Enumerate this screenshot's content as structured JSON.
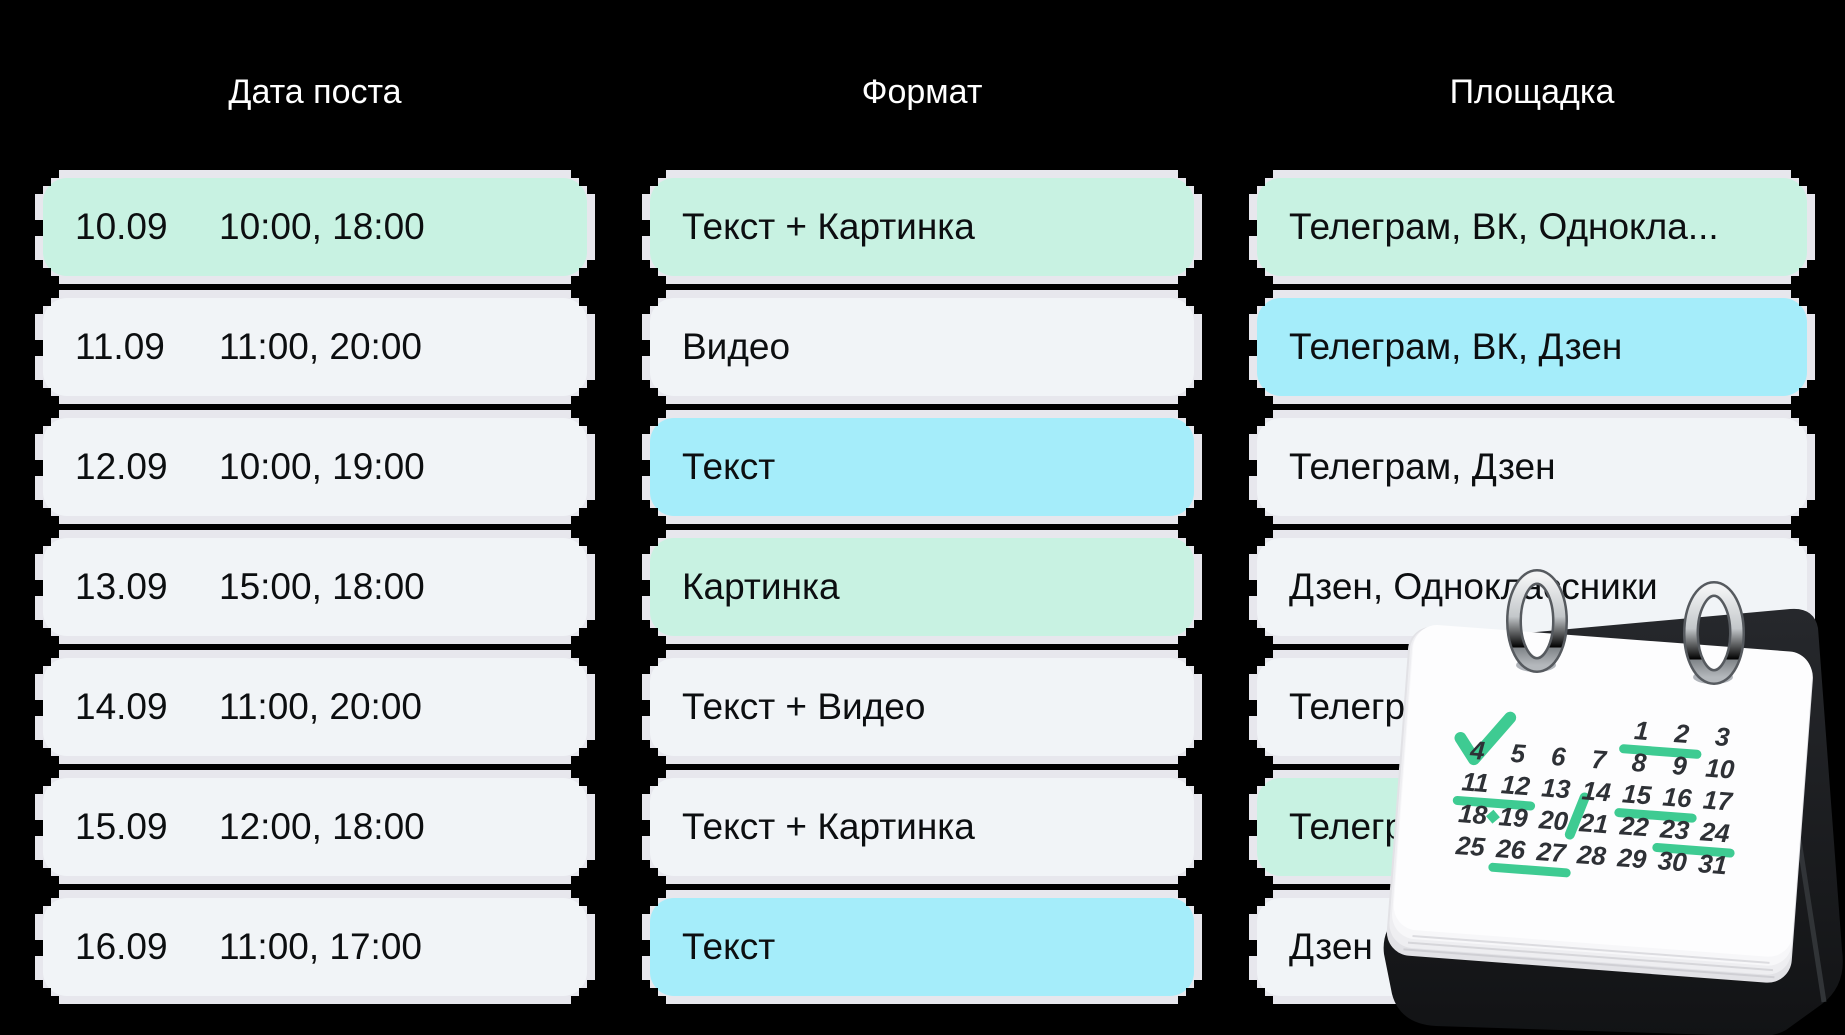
{
  "header": {
    "columns": [
      "Дата поста",
      "Формат",
      "Площадка"
    ]
  },
  "rows": [
    {
      "date": "10.09",
      "times": "10:00, 18:00",
      "format": "Текст + Картинка",
      "platform": "Телеграм, ВК, Однокла...",
      "date_color": "mint",
      "format_color": "mint",
      "platform_color": "mint"
    },
    {
      "date": "11.09",
      "times": "11:00, 20:00",
      "format": "Видео",
      "platform": "Телеграм, ВК, Дзен",
      "date_color": "gray",
      "format_color": "gray",
      "platform_color": "cyan"
    },
    {
      "date": "12.09",
      "times": "10:00, 19:00",
      "format": "Текст",
      "platform": "Телеграм, Дзен",
      "date_color": "gray",
      "format_color": "cyan",
      "platform_color": "gray"
    },
    {
      "date": "13.09",
      "times": "15:00, 18:00",
      "format": "Картинка",
      "platform": "Дзен, Одноклассники",
      "date_color": "gray",
      "format_color": "mint",
      "platform_color": "gray"
    },
    {
      "date": "14.09",
      "times": "11:00, 20:00",
      "format": "Текст + Видео",
      "platform": "Телеграм",
      "date_color": "gray",
      "format_color": "gray",
      "platform_color": "gray"
    },
    {
      "date": "15.09",
      "times": "12:00, 18:00",
      "format": "Текст + Картинка",
      "platform": "Телеграм",
      "date_color": "gray",
      "format_color": "gray",
      "platform_color": "mint"
    },
    {
      "date": "16.09",
      "times": "11:00, 17:00",
      "format": "Текст",
      "platform": "Дзен",
      "date_color": "gray",
      "format_color": "cyan",
      "platform_color": "gray"
    }
  ],
  "colors": {
    "background": "#000000",
    "mint": "#c8f2e2",
    "cyan": "#a5edfa",
    "gray": "#f1f4f7",
    "sticker_outline": "#e7e7ed",
    "row_text": "#0c0e10",
    "header_text": "#ffffff",
    "green_mark": "#3ecb92",
    "calendar_digit": "#2e3136"
  },
  "calendar": {
    "weeks": [
      [
        "",
        "",
        "",
        "",
        "1",
        "2",
        "3"
      ],
      [
        "4",
        "5",
        "6",
        "7",
        "8",
        "9",
        "10"
      ],
      [
        "11",
        "12",
        "13",
        "14",
        "15",
        "16",
        "17"
      ],
      [
        "18",
        "19",
        "20",
        "21",
        "22",
        "23",
        "24"
      ],
      [
        "25",
        "26",
        "27",
        "28",
        "29",
        "30",
        "31"
      ]
    ],
    "marks": {
      "check_day": "4",
      "underlines": [
        [
          "1",
          "2"
        ],
        [
          "11",
          "12"
        ],
        [
          "15",
          "16"
        ],
        [
          "23",
          "24"
        ],
        [
          "26",
          "27"
        ]
      ],
      "slash_between": [
        "20",
        "21"
      ],
      "diamond_between": [
        "18",
        "19"
      ]
    }
  }
}
